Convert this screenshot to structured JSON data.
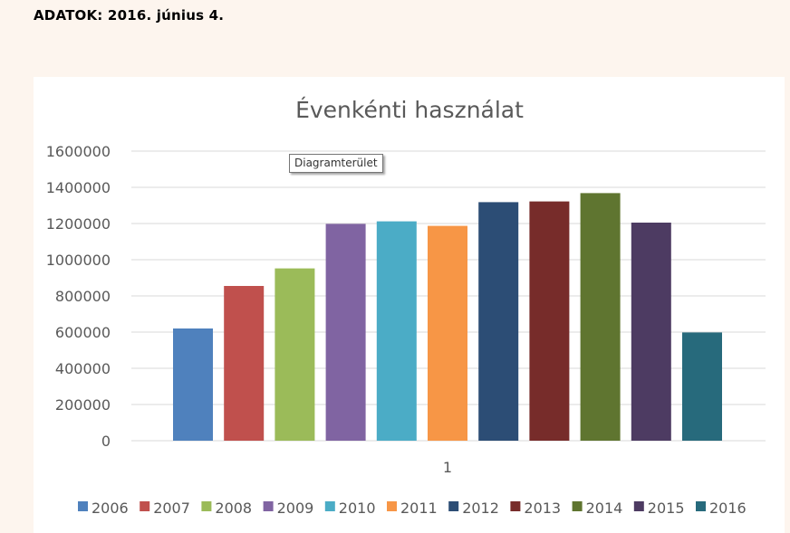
{
  "page": {
    "heading": "ADATOK: 2016. június 4."
  },
  "tooltip": {
    "text": "Diagramterület"
  },
  "colors": {
    "page_background": "#fdf5ee",
    "grid": "#d9d9d9",
    "axis_text": "#595959"
  },
  "chart_data": {
    "type": "bar",
    "title": "Évenkénti használat",
    "xlabel": "",
    "ylabel": "",
    "categories": [
      "1"
    ],
    "ylim": [
      0,
      1600000
    ],
    "yticks": [
      0,
      200000,
      400000,
      600000,
      800000,
      1000000,
      1200000,
      1400000,
      1600000
    ],
    "grid": true,
    "legend_position": "bottom",
    "series": [
      {
        "name": "2006",
        "values": [
          620000
        ],
        "color": "#4f81bd"
      },
      {
        "name": "2007",
        "values": [
          855000
        ],
        "color": "#c0504d"
      },
      {
        "name": "2008",
        "values": [
          952000
        ],
        "color": "#9bbb59"
      },
      {
        "name": "2009",
        "values": [
          1198000
        ],
        "color": "#8064a2"
      },
      {
        "name": "2010",
        "values": [
          1212000
        ],
        "color": "#4bacc6"
      },
      {
        "name": "2011",
        "values": [
          1187000
        ],
        "color": "#f79646"
      },
      {
        "name": "2012",
        "values": [
          1318000
        ],
        "color": "#2c4d75"
      },
      {
        "name": "2013",
        "values": [
          1322000
        ],
        "color": "#772c2a"
      },
      {
        "name": "2014",
        "values": [
          1368000
        ],
        "color": "#5f7530"
      },
      {
        "name": "2015",
        "values": [
          1205000
        ],
        "color": "#4d3b62"
      },
      {
        "name": "2016",
        "values": [
          598000
        ],
        "color": "#276a7c"
      }
    ]
  }
}
